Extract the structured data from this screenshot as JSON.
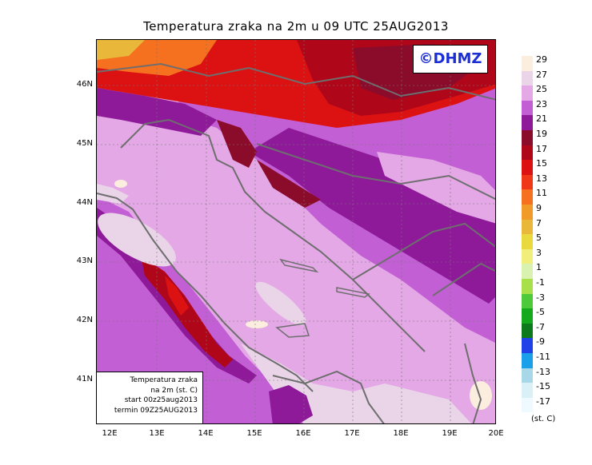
{
  "title": "Temperatura zraka na 2m u 09 UTC 25AUG2013",
  "logo": "©DHMZ",
  "info": [
    "Temperatura zraka",
    "na 2m (st. C)",
    "start 00z25aug2013",
    "termin 09Z25AUG2013"
  ],
  "lat_ticks": [
    "46N",
    "45N",
    "44N",
    "43N",
    "42N",
    "41N"
  ],
  "lon_ticks": [
    "12E",
    "13E",
    "14E",
    "15E",
    "16E",
    "17E",
    "18E",
    "19E",
    "20E"
  ],
  "legend": {
    "levels": [
      {
        "label": "29",
        "color": "#fbeede"
      },
      {
        "label": "27",
        "color": "#e9d4e8"
      },
      {
        "label": "25",
        "color": "#e4a8e6"
      },
      {
        "label": "23",
        "color": "#c35fd4"
      },
      {
        "label": "21",
        "color": "#8e1a9a"
      },
      {
        "label": "19",
        "color": "#8b0b2b"
      },
      {
        "label": "17",
        "color": "#b0061a"
      },
      {
        "label": "15",
        "color": "#dc1212"
      },
      {
        "label": "13",
        "color": "#f03818"
      },
      {
        "label": "11",
        "color": "#f5701f"
      },
      {
        "label": "9",
        "color": "#f09a2a"
      },
      {
        "label": "7",
        "color": "#e9b83a"
      },
      {
        "label": "5",
        "color": "#e9d93c"
      },
      {
        "label": "3",
        "color": "#f1ee7c"
      },
      {
        "label": "1",
        "color": "#d9f2b0"
      },
      {
        "label": "-1",
        "color": "#a8e04a"
      },
      {
        "label": "-3",
        "color": "#4ec93a"
      },
      {
        "label": "-5",
        "color": "#14a81c"
      },
      {
        "label": "-7",
        "color": "#0c7a1a"
      },
      {
        "label": "-9",
        "color": "#2040e8"
      },
      {
        "label": "-11",
        "color": "#1aa0e8"
      },
      {
        "label": "-13",
        "color": "#a8d8e8"
      },
      {
        "label": "-15",
        "color": "#d8f0f6"
      },
      {
        "label": "-17",
        "color": "#eefaff"
      }
    ],
    "units": "(st. C)"
  }
}
